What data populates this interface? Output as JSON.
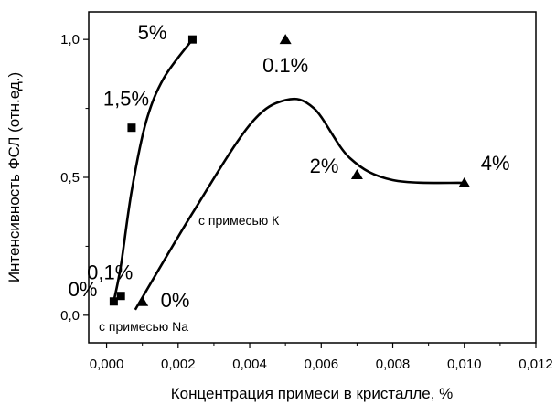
{
  "chart_data": {
    "type": "scatter",
    "xlabel": "Концентрация примеси в кристалле, %",
    "ylabel": "Интенсивность ФСЛ (отн.ед.)",
    "xlim": [
      -0.0005,
      0.012
    ],
    "ylim": [
      -0.1,
      1.1
    ],
    "x_ticks": [
      0.0,
      0.002,
      0.004,
      0.006,
      0.008,
      0.01,
      0.012
    ],
    "x_tick_labels": [
      "0,000",
      "0,002",
      "0,004",
      "0,006",
      "0,008",
      "0,010",
      "0,012"
    ],
    "y_ticks": [
      0.0,
      0.5,
      1.0
    ],
    "y_tick_labels": [
      "0,0",
      "0,5",
      "1,0"
    ],
    "grid": false,
    "series": [
      {
        "marker": "square",
        "points": [
          {
            "x": 0.0002,
            "y": 0.05,
            "label": "0%"
          },
          {
            "x": 0.0004,
            "y": 0.07,
            "label": "0,1%"
          },
          {
            "x": 0.0007,
            "y": 0.68,
            "label": "1,5%"
          },
          {
            "x": 0.0024,
            "y": 1.0,
            "label": "5%"
          }
        ],
        "fit_curve": [
          [
            0.0002,
            0.05
          ],
          [
            0.0004,
            0.18
          ],
          [
            0.0007,
            0.45
          ],
          [
            0.0011,
            0.7
          ],
          [
            0.0016,
            0.86
          ],
          [
            0.0024,
            1.0
          ]
        ],
        "annotation": "с примесью Na"
      },
      {
        "marker": "triangle",
        "points": [
          {
            "x": 0.001,
            "y": 0.05,
            "label": "0%"
          },
          {
            "x": 0.005,
            "y": 1.0,
            "label": "0.1%"
          },
          {
            "x": 0.007,
            "y": 0.51,
            "label": "2%"
          },
          {
            "x": 0.01,
            "y": 0.48,
            "label": "4%"
          }
        ],
        "fit_curve": [
          [
            0.0008,
            0.02
          ],
          [
            0.0024,
            0.37
          ],
          [
            0.004,
            0.69
          ],
          [
            0.005,
            0.78
          ],
          [
            0.0058,
            0.75
          ],
          [
            0.0068,
            0.57
          ],
          [
            0.008,
            0.49
          ],
          [
            0.01,
            0.48
          ]
        ],
        "annotation": "с примесью К"
      }
    ]
  }
}
